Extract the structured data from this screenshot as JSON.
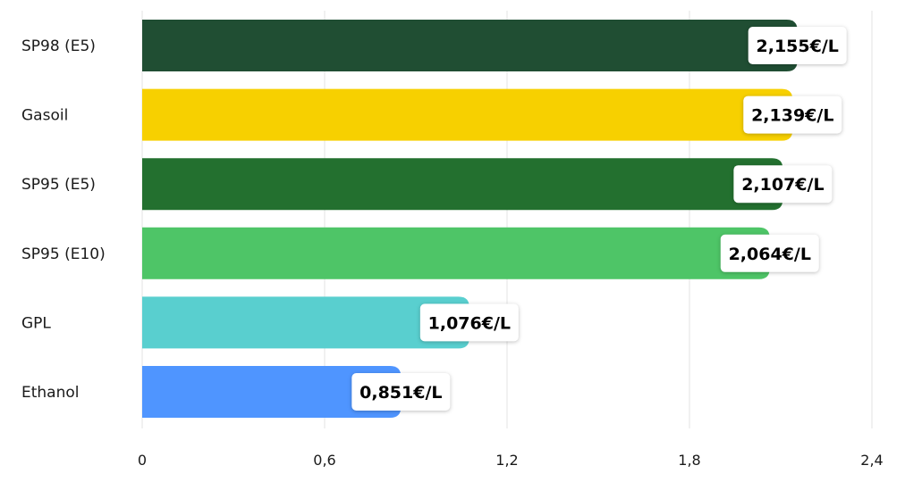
{
  "chart_data": {
    "type": "bar",
    "orientation": "horizontal",
    "categories": [
      "SP98 (E5)",
      "Gasoil",
      "SP95 (E5)",
      "SP95 (E10)",
      "GPL",
      "Ethanol"
    ],
    "values": [
      2.155,
      2.139,
      2.107,
      2.064,
      1.076,
      0.851
    ],
    "value_labels": [
      "2,155€/L",
      "2,139€/L",
      "2,107€/L",
      "2,064€/L",
      "1,076€/L",
      "0,851€/L"
    ],
    "colors": [
      "#204e33",
      "#f7d000",
      "#23702f",
      "#4ec567",
      "#59cfcf",
      "#4f95ff"
    ],
    "x_ticks": [
      0,
      0.6,
      1.2,
      1.8,
      2.4
    ],
    "x_tick_labels": [
      "0",
      "0,6",
      "1,2",
      "1,8",
      "2,4"
    ],
    "xlim": [
      0,
      2.4
    ],
    "grid": true
  }
}
